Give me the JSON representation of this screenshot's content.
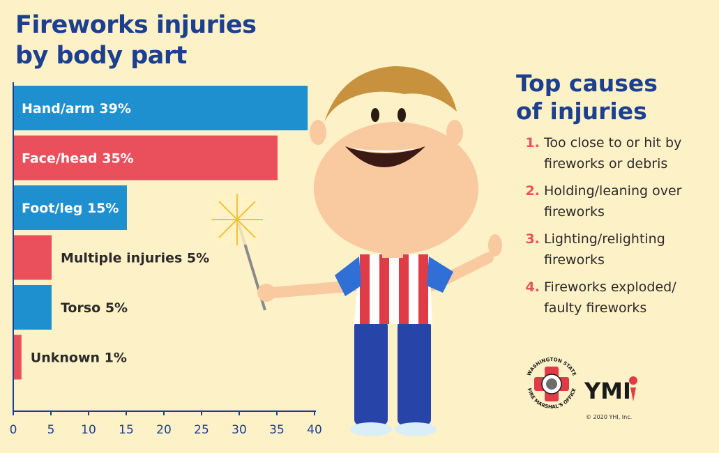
{
  "title_line1": "Fireworks injuries",
  "title_line2": "by body part",
  "chart_data": {
    "type": "bar",
    "orientation": "horizontal",
    "categories": [
      "Hand/arm",
      "Face/head",
      "Foot/leg",
      "Multiple injuries",
      "Torso",
      "Unknown"
    ],
    "values": [
      39,
      35,
      15,
      5,
      5,
      1
    ],
    "labels": [
      "Hand/arm 39%",
      "Face/head 35%",
      "Foot/leg 15%",
      "Multiple injuries 5%",
      "Torso 5%",
      "Unknown 1%"
    ],
    "colors": [
      "#1e90d0",
      "#e9505c",
      "#1e90d0",
      "#e9505c",
      "#1e90d0",
      "#e9505c"
    ],
    "xticks": [
      "0",
      "5",
      "10",
      "15",
      "20",
      "25",
      "30",
      "35",
      "40"
    ],
    "xlim": [
      0,
      40
    ],
    "grid": false
  },
  "causes": {
    "title_line1": "Top causes",
    "title_line2": "of injuries",
    "items": [
      {
        "num": "1.",
        "text": "Too close to or hit by fireworks or debris"
      },
      {
        "num": "2.",
        "text": "Holding/leaning over fireworks"
      },
      {
        "num": "3.",
        "text": "Lighting/relighting fireworks"
      },
      {
        "num": "4.",
        "text": "Fireworks exploded/ faulty fireworks"
      }
    ]
  },
  "logos": {
    "sfm_top": "WASHINGTON STATE",
    "sfm_bottom": "FIRE MARSHAL'S OFFICE",
    "ymi": "YMI",
    "copyright": "© 2020 YHI, Inc."
  },
  "colors": {
    "background": "#fdf1c7",
    "navy": "#1c3f8e",
    "blue": "#1e90d0",
    "red": "#e9505c"
  }
}
